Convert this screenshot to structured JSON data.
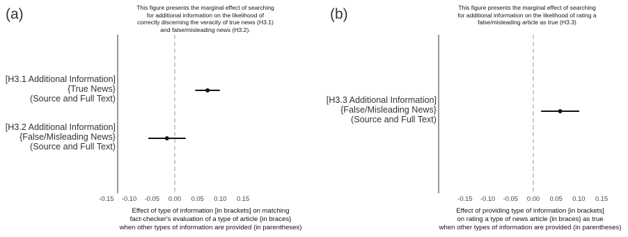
{
  "chart_data": [
    {
      "type": "scatter",
      "panel": "(a)",
      "title": "This figure presents the marginal effect of searching\nfor additional information on the likelihood of\ncorrectly discerning the veracity of true news (H3.1)\nand false/misleading news (H3.2).",
      "xlabel": "Effect of type of information [in brackets] on matching\nfact-checker's evaluation of a type of article {in braces}\nwhen other types of information are provided (in parentheses)",
      "xlim": [
        -0.17,
        0.16
      ],
      "xticks": [
        -0.15,
        -0.1,
        -0.05,
        0.0,
        0.05,
        0.1,
        0.15
      ],
      "tick_labels": [
        "-0.15",
        "-0.10",
        "-0.05",
        "0.00",
        "0.05",
        "0.10",
        "0.15"
      ],
      "reference_line": 0,
      "points": [
        {
          "label": [
            "[H3.1 Additional Information]",
            "{True News}",
            "(Source and Full Text)"
          ],
          "estimate": 0.072,
          "ci": [
            0.045,
            0.099
          ]
        },
        {
          "label": [
            "[H3.2 Additional Information]",
            "{False/Misleading News}",
            "(Source and Full Text)"
          ],
          "estimate": -0.017,
          "ci": [
            -0.058,
            0.024
          ]
        }
      ]
    },
    {
      "type": "scatter",
      "panel": "(b)",
      "title": "This figure presents the marginal effect of searching\nfor additional information on the likelihood of rating a\nfalse/misleading article as true (H3.3)",
      "xlabel": "Effect of providing type of information [in brackets]\non rating a type of news article {in braces} as true\nwhen other types of information are provided (in parentheses)",
      "xlim": [
        -0.17,
        0.16
      ],
      "xticks": [
        -0.15,
        -0.1,
        -0.05,
        0.0,
        0.05,
        0.1,
        0.15
      ],
      "tick_labels": [
        "-0.15",
        "-0.10",
        "-0.05",
        "0.00",
        "0.05",
        "0.10",
        "0.15"
      ],
      "reference_line": 0,
      "points": [
        {
          "label": [
            "[H3.3 Additional Information]",
            "{False/Misleading News}",
            "(Source and Full Text)"
          ],
          "estimate": 0.059,
          "ci": [
            0.017,
            0.101
          ]
        }
      ]
    }
  ]
}
